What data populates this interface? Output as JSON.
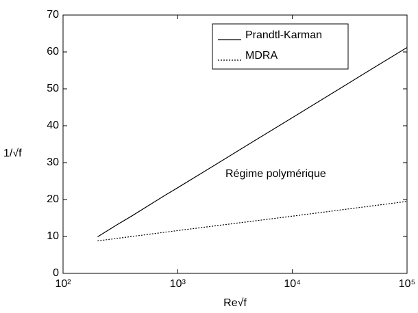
{
  "chart_data": {
    "type": "line",
    "x_label": "Re√f",
    "y_label": "1/√f",
    "annotation": "Régime polymérique",
    "xscale": "log",
    "legend": "upper right",
    "xlim": [
      100,
      100000
    ],
    "xticks": [
      {
        "value": 100,
        "label": "10²"
      },
      {
        "value": 1000,
        "label": "10³"
      },
      {
        "value": 10000,
        "label": "10⁴"
      },
      {
        "value": 100000,
        "label": "10⁵"
      }
    ],
    "ylim": [
      0,
      70
    ],
    "yticks": [
      0,
      10,
      20,
      30,
      40,
      50,
      60,
      70
    ],
    "series": [
      {
        "name": "Prandtl-Karman",
        "color": "#000000",
        "dash": "solid",
        "x": [
          200,
          300,
          400,
          600,
          800,
          1000,
          2000,
          5000,
          10000,
          20000,
          50000,
          100000
        ],
        "values": [
          9.9,
          13.3,
          15.6,
          19.0,
          21.4,
          23.2,
          28.9,
          36.5,
          42.2,
          47.9,
          55.5,
          61.2
        ]
      },
      {
        "name": "MDRA",
        "color": "#000000",
        "dash": "dotted",
        "x": [
          200,
          1000,
          10000,
          100000
        ],
        "values": [
          8.8,
          11.6,
          15.5,
          19.5
        ]
      }
    ]
  }
}
